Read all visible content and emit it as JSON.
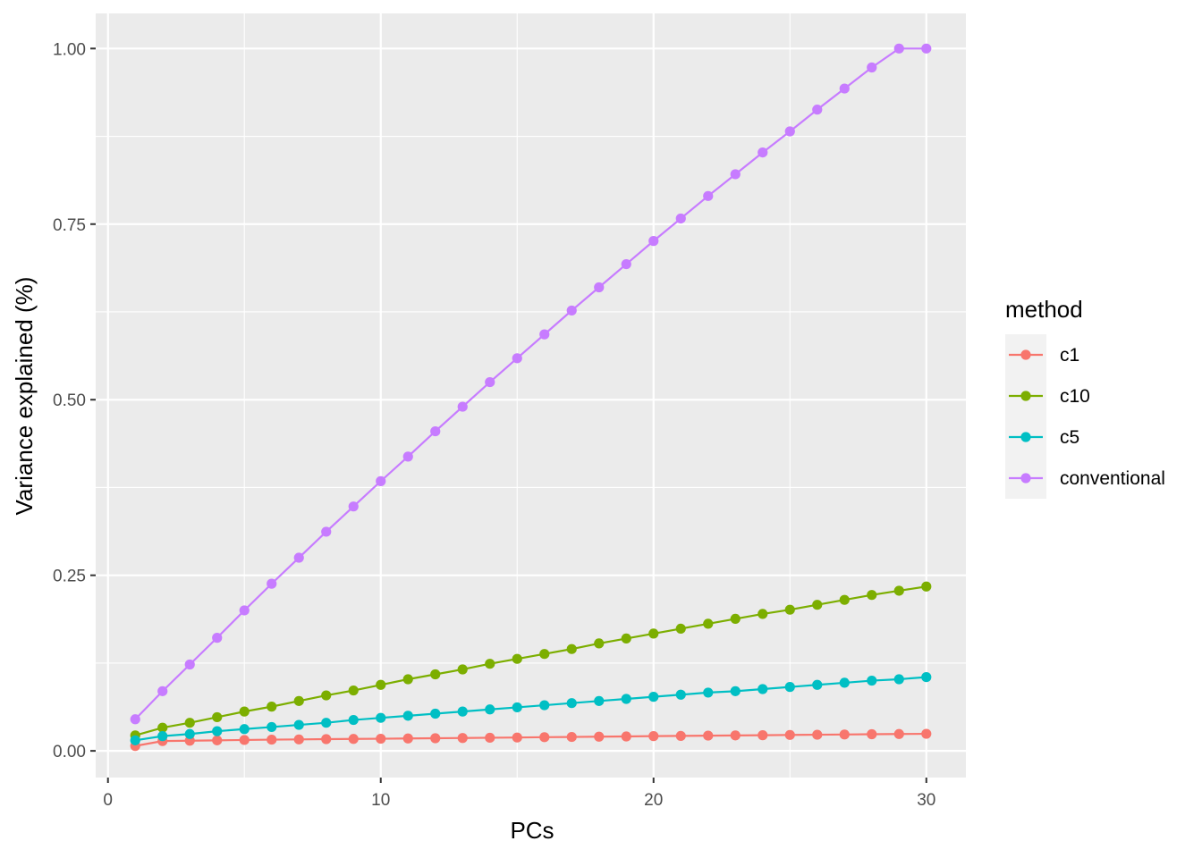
{
  "chart_data": {
    "type": "line",
    "xlabel": "PCs",
    "ylabel": "Variance explained (%)",
    "xlim": [
      -0.45,
      31.45
    ],
    "ylim": [
      -0.038,
      1.05
    ],
    "x_ticks": [
      0,
      10,
      20,
      30
    ],
    "x_tick_labels": [
      "0",
      "10",
      "20",
      "30"
    ],
    "y_ticks": [
      0,
      0.25,
      0.5,
      0.75,
      1.0
    ],
    "y_tick_labels": [
      "0.00",
      "0.25",
      "0.50",
      "0.75",
      "1.00"
    ],
    "grid": true,
    "legend": {
      "title": "method",
      "position": "right"
    },
    "x": [
      1,
      2,
      3,
      4,
      5,
      6,
      7,
      8,
      9,
      10,
      11,
      12,
      13,
      14,
      15,
      16,
      17,
      18,
      19,
      20,
      21,
      22,
      23,
      24,
      25,
      26,
      27,
      28,
      29,
      30
    ],
    "series": [
      {
        "name": "c1",
        "color": "#F8766D",
        "values": [
          0.007,
          0.014,
          0.0145,
          0.015,
          0.0155,
          0.016,
          0.0163,
          0.0167,
          0.017,
          0.0173,
          0.0177,
          0.018,
          0.0183,
          0.0187,
          0.019,
          0.0195,
          0.0198,
          0.0202,
          0.0205,
          0.021,
          0.0213,
          0.0217,
          0.022,
          0.0223,
          0.0227,
          0.023,
          0.0233,
          0.0237,
          0.024,
          0.0243
        ]
      },
      {
        "name": "c10",
        "color": "#7CAE00",
        "values": [
          0.022,
          0.033,
          0.04,
          0.048,
          0.056,
          0.063,
          0.071,
          0.079,
          0.086,
          0.094,
          0.102,
          0.109,
          0.116,
          0.124,
          0.131,
          0.138,
          0.145,
          0.153,
          0.16,
          0.167,
          0.174,
          0.181,
          0.188,
          0.195,
          0.201,
          0.208,
          0.215,
          0.222,
          0.228,
          0.234
        ]
      },
      {
        "name": "c5",
        "color": "#00BFC4",
        "values": [
          0.015,
          0.021,
          0.024,
          0.028,
          0.031,
          0.034,
          0.037,
          0.04,
          0.044,
          0.047,
          0.05,
          0.053,
          0.056,
          0.059,
          0.062,
          0.065,
          0.068,
          0.071,
          0.074,
          0.077,
          0.08,
          0.083,
          0.085,
          0.088,
          0.091,
          0.094,
          0.097,
          0.1,
          0.102,
          0.105
        ]
      },
      {
        "name": "conventional",
        "color": "#C77CFF",
        "values": [
          0.045,
          0.085,
          0.123,
          0.161,
          0.2,
          0.238,
          0.275,
          0.312,
          0.348,
          0.384,
          0.419,
          0.455,
          0.49,
          0.525,
          0.559,
          0.593,
          0.627,
          0.66,
          0.693,
          0.726,
          0.758,
          0.79,
          0.821,
          0.852,
          0.882,
          0.913,
          0.943,
          0.973,
          1.0,
          1.0
        ]
      }
    ]
  }
}
